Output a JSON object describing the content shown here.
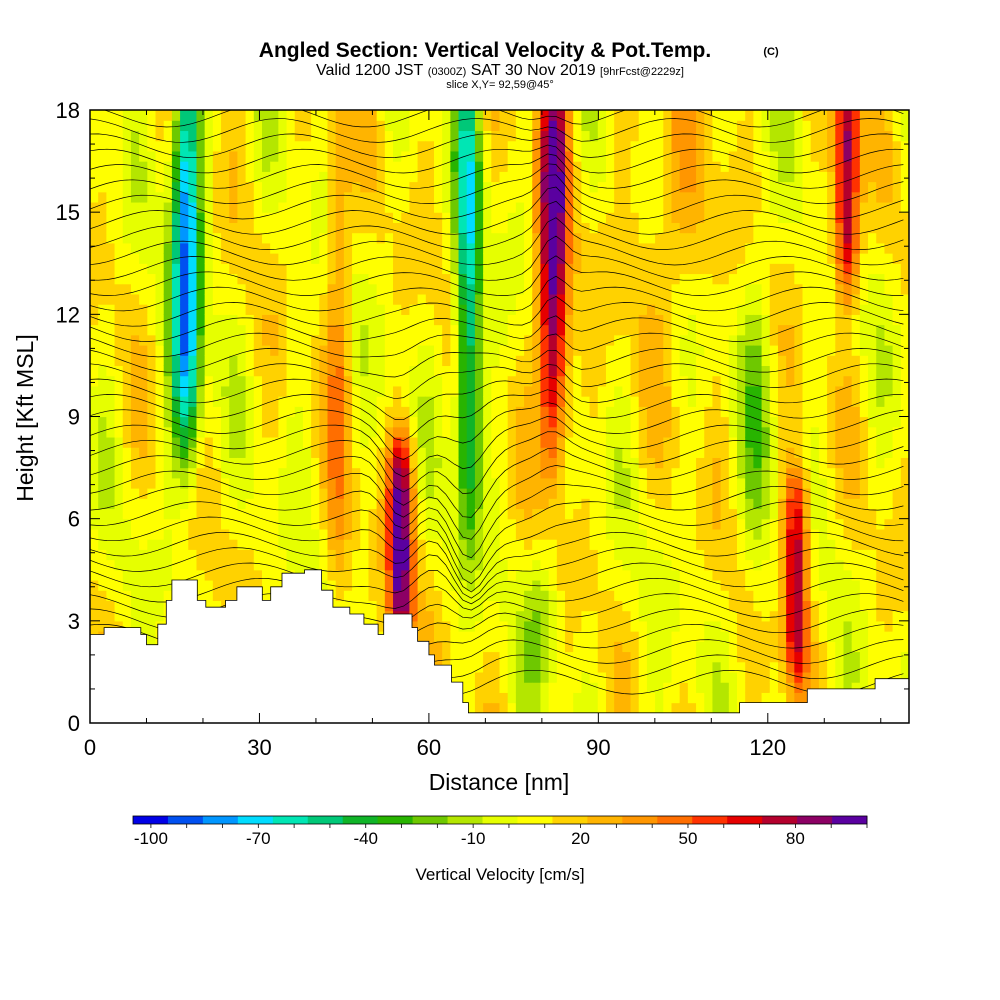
{
  "chart_data": {
    "type": "heatmap",
    "title": "Angled Section: Vertical Velocity & Pot.Temp.",
    "title_suffix": "(C)",
    "subtitle_a": "Valid 1200 JST",
    "subtitle_b": "(0300Z)",
    "subtitle_c": "SAT 30 Nov 2019",
    "subtitle_d": "[9hrFcst@2229z]",
    "slice_note": "slice X,Y= 92,59@45°",
    "xlabel": "Distance [nm]",
    "ylabel": "Height [Kft MSL]",
    "xlim": [
      0,
      145
    ],
    "ylim": [
      0,
      18
    ],
    "x_ticks": [
      0,
      30,
      60,
      90,
      120
    ],
    "y_ticks": [
      0,
      3,
      6,
      9,
      12,
      15,
      18
    ],
    "colorbar": {
      "label": "Vertical Velocity [cm/s]",
      "range": [
        -105,
        100
      ],
      "tick_values": [
        -100,
        -70,
        -40,
        -10,
        20,
        50,
        80
      ],
      "tick_labels": [
        "-100",
        "-70",
        "-40",
        "-10",
        "20",
        "50",
        "80"
      ],
      "colors": [
        "#0000e6",
        "#0050f0",
        "#0096ff",
        "#00dcff",
        "#00e6b4",
        "#00c878",
        "#10b428",
        "#28b400",
        "#6ec800",
        "#b4e600",
        "#e6ff00",
        "#ffff00",
        "#ffd200",
        "#ffb400",
        "#ff9600",
        "#ff6e00",
        "#ff3200",
        "#e60000",
        "#b4002d",
        "#8c0064",
        "#5a00a0"
      ]
    },
    "updraft_columns": [
      {
        "x": 17,
        "w": -80,
        "y_range": [
          9,
          18
        ]
      },
      {
        "x": 44,
        "w": 35,
        "y_range": [
          4,
          18
        ]
      },
      {
        "x": 55,
        "w": 95,
        "y_range": [
          3.5,
          7
        ]
      },
      {
        "x": 67,
        "w": -60,
        "y_range": [
          7,
          18
        ]
      },
      {
        "x": 82,
        "w": 100,
        "y_range": [
          9,
          18
        ]
      },
      {
        "x": 125,
        "w": 85,
        "y_range": [
          2.5,
          6
        ]
      },
      {
        "x": 134,
        "w": 90,
        "y_range": [
          14,
          18
        ]
      }
    ],
    "terrain_kft": [
      [
        0,
        2.6
      ],
      [
        2.5,
        2.8
      ],
      [
        9,
        2.6
      ],
      [
        10,
        2.3
      ],
      [
        12,
        2.9
      ],
      [
        13.5,
        3.6
      ],
      [
        14.5,
        4.2
      ],
      [
        19,
        3.6
      ],
      [
        20.5,
        3.4
      ],
      [
        24,
        3.6
      ],
      [
        26,
        4.0
      ],
      [
        30.5,
        3.6
      ],
      [
        32,
        4.0
      ],
      [
        34,
        4.4
      ],
      [
        38,
        4.5
      ],
      [
        41,
        3.9
      ],
      [
        43,
        3.4
      ],
      [
        46,
        3.2
      ],
      [
        48.5,
        2.9
      ],
      [
        51,
        2.6
      ],
      [
        52,
        3.2
      ],
      [
        55,
        3.2
      ],
      [
        57,
        2.8
      ],
      [
        58,
        2.4
      ],
      [
        60,
        2.0
      ],
      [
        61,
        1.7
      ],
      [
        64,
        1.2
      ],
      [
        66,
        0.6
      ],
      [
        67,
        0.3
      ],
      [
        114,
        0.3
      ],
      [
        115,
        0.6
      ],
      [
        126,
        0.6
      ],
      [
        127,
        1.0
      ],
      [
        138,
        1.0
      ],
      [
        139,
        1.3
      ],
      [
        145,
        1.3
      ]
    ]
  }
}
